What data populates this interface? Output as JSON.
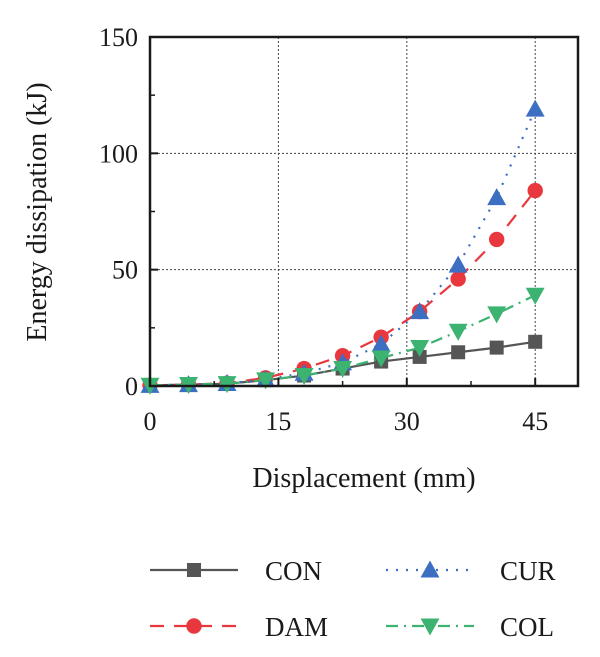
{
  "chart_data": {
    "type": "line",
    "xlabel": "Displacement (mm)",
    "ylabel": "Energy dissipation (kJ)",
    "xlim": [
      0,
      50
    ],
    "ylim": [
      0,
      150
    ],
    "x_ticks": [
      0,
      15,
      30,
      45
    ],
    "y_ticks": [
      0,
      50,
      100,
      150
    ],
    "x_tick_labels": [
      "0",
      "15",
      "30",
      "45"
    ],
    "y_tick_labels": [
      "0",
      "50",
      "100",
      "150"
    ],
    "grid": true,
    "legend_position": "bottom",
    "series": [
      {
        "name": "CON",
        "color": "#555555",
        "marker": "square",
        "line_style": "solid",
        "x": [
          0,
          4.5,
          9,
          13.5,
          18,
          22.5,
          27,
          31.5,
          36,
          40.5,
          45
        ],
        "y": [
          0.3,
          0.6,
          1.0,
          2.5,
          4.5,
          7.5,
          10.5,
          12.5,
          14.5,
          16.5,
          19
        ]
      },
      {
        "name": "DAM",
        "color": "#e8383d",
        "marker": "circle",
        "line_style": "dashed",
        "x": [
          0,
          4.5,
          9,
          13.5,
          18,
          22.5,
          27,
          31.5,
          36,
          40.5,
          45
        ],
        "y": [
          0.3,
          0.6,
          1.2,
          3.5,
          7.5,
          13,
          21,
          32,
          46,
          63,
          84
        ]
      },
      {
        "name": "CUR",
        "color": "#3c6fc2",
        "marker": "triangle-up",
        "line_style": "dotted",
        "x": [
          0,
          4.5,
          9,
          13.5,
          18,
          22.5,
          27,
          31.5,
          36,
          40.5,
          45
        ],
        "y": [
          0.3,
          0.6,
          1.1,
          2.8,
          5.5,
          10,
          18,
          32,
          52,
          81,
          119
        ]
      },
      {
        "name": "COL",
        "color": "#3cb371",
        "marker": "triangle-down",
        "line_style": "dashdot",
        "x": [
          0,
          4.5,
          9,
          13.5,
          18,
          22.5,
          27,
          31.5,
          36,
          40.5,
          45
        ],
        "y": [
          0.3,
          0.6,
          1.0,
          2.6,
          4.5,
          7.5,
          12,
          16.5,
          23.5,
          31,
          39
        ]
      }
    ]
  }
}
